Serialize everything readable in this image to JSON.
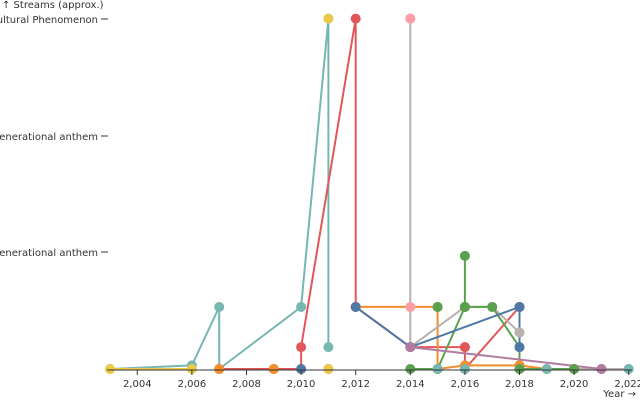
{
  "chart_data": {
    "type": "line",
    "xlabel": "Year →",
    "ylabel": "↑ Streams (approx.)",
    "xlim": [
      2002.8,
      2022.2
    ],
    "x_ticks": [
      "2,004",
      "2,006",
      "2,008",
      "2,010",
      "2,012",
      "2,014",
      "2,016",
      "2,018",
      "2,020",
      "2,022"
    ],
    "x_tick_values": [
      2004,
      2006,
      2008,
      2010,
      2012,
      2014,
      2016,
      2018,
      2020,
      2022
    ],
    "y_scale": "ordinal-like",
    "y_ticks": [
      "Cultural Phenomenon",
      "Generational anthem",
      "Generational anthem"
    ],
    "grid": false,
    "series": [
      {
        "color": "#76b7b2",
        "points": [
          [
            2003,
            0.0
          ],
          [
            2006,
            0.1
          ],
          [
            2007,
            1.7
          ],
          [
            2007,
            0.0
          ],
          [
            2010,
            1.7
          ],
          [
            2011,
            9.6
          ],
          [
            2011,
            0.6
          ]
        ]
      },
      {
        "color": "#edc948",
        "points": [
          [
            2003,
            0.0
          ],
          [
            2006,
            0.0
          ]
        ]
      },
      {
        "color": "#e15759",
        "points": [
          [
            2007,
            0.0
          ],
          [
            2009,
            0.0
          ],
          [
            2010,
            0.0
          ],
          [
            2010,
            0.6
          ],
          [
            2012,
            9.6
          ],
          [
            2012,
            1.7
          ],
          [
            2014,
            0.6
          ],
          [
            2016,
            0.6
          ],
          [
            2016,
            0.0
          ],
          [
            2018,
            1.7
          ],
          [
            2018,
            0.0
          ],
          [
            2020,
            0.0
          ]
        ]
      },
      {
        "color": "#f28e2b",
        "points": [
          [
            2012,
            1.7
          ],
          [
            2015,
            1.7
          ],
          [
            2015,
            0.0
          ],
          [
            2016,
            0.1
          ],
          [
            2018,
            0.1
          ],
          [
            2019,
            0.0
          ],
          [
            2020,
            0.0
          ]
        ]
      },
      {
        "color": "#bab0ac",
        "points": [
          [
            2014,
            9.6
          ],
          [
            2014,
            0.6
          ],
          [
            2016,
            1.7
          ],
          [
            2017,
            1.7
          ],
          [
            2018,
            1.0
          ],
          [
            2018,
            0.0
          ],
          [
            2022,
            0.0
          ]
        ]
      },
      {
        "color": "#59a14f",
        "points": [
          [
            2014,
            0.0
          ],
          [
            2015,
            0.0
          ],
          [
            2016,
            1.7
          ],
          [
            2016,
            3.1
          ],
          [
            2016,
            1.7
          ],
          [
            2017,
            1.7
          ],
          [
            2018,
            0.6
          ],
          [
            2018,
            0.0
          ],
          [
            2020,
            0.0
          ]
        ]
      },
      {
        "color": "#4e79a7",
        "points": [
          [
            2012,
            1.7
          ],
          [
            2014,
            0.6
          ],
          [
            2018,
            1.7
          ],
          [
            2018,
            0.6
          ]
        ]
      },
      {
        "color": "#b07aa1",
        "points": [
          [
            2014,
            0.6
          ],
          [
            2021,
            0.0
          ]
        ]
      }
    ],
    "extra_points": [
      {
        "x": 2011,
        "y": 9.6,
        "color": "#edc948"
      },
      {
        "x": 2014,
        "y": 9.6,
        "color": "#ff9da7"
      },
      {
        "x": 2014,
        "y": 1.7,
        "color": "#ff9da7"
      },
      {
        "x": 2010,
        "y": 0.0,
        "color": "#4e79a7"
      },
      {
        "x": 2011,
        "y": 0.0,
        "color": "#e15759"
      },
      {
        "x": 2011,
        "y": 0.0,
        "color": "#edc948"
      },
      {
        "x": 2015,
        "y": 0.0,
        "color": "#76b7b2"
      },
      {
        "x": 2016,
        "y": 0.0,
        "color": "#76b7b2"
      },
      {
        "x": 2019,
        "y": 0.0,
        "color": "#76b7b2"
      },
      {
        "x": 2022,
        "y": 0.0,
        "color": "#76b7b2"
      },
      {
        "x": 2021,
        "y": 0.0,
        "color": "#b07aa1"
      },
      {
        "x": 2018,
        "y": 1.0,
        "color": "#bab0ac"
      },
      {
        "x": 2015,
        "y": 1.7,
        "color": "#59a14f"
      },
      {
        "x": 2016,
        "y": 1.7,
        "color": "#59a14f"
      },
      {
        "x": 2018,
        "y": 1.7,
        "color": "#4e79a7"
      },
      {
        "x": 2016,
        "y": 0.6,
        "color": "#e15759"
      },
      {
        "x": 2009,
        "y": 0.0,
        "color": "#f28e2b"
      },
      {
        "x": 2007,
        "y": 0.0,
        "color": "#f28e2b"
      }
    ]
  }
}
